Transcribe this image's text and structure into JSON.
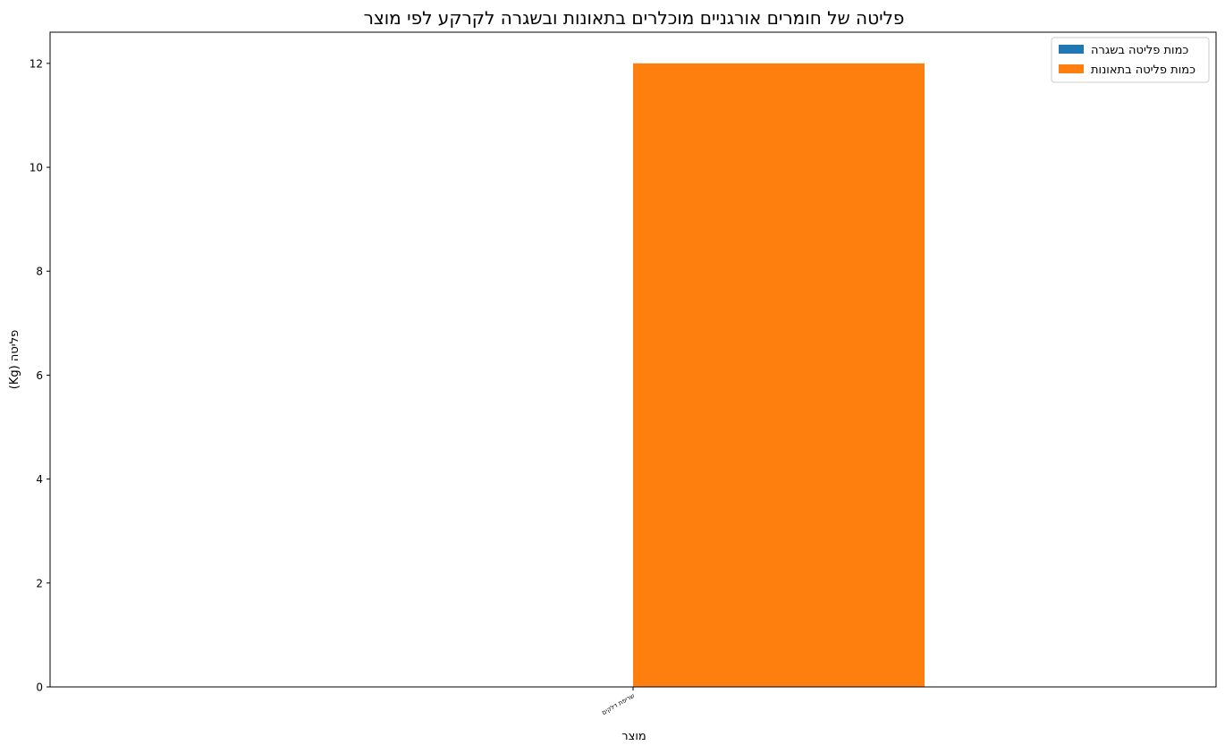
{
  "chart_data": {
    "type": "bar",
    "title": "פליטה של חומרים אורגניים מוכלרים בתאונות ובשגרה לקרקע לפי מוצר",
    "xlabel": "מוצר",
    "ylabel": "(Kg) פליטה",
    "categories": [
      "שריפת דלקים"
    ],
    "series": [
      {
        "name": "כמות פליטה בשגרה",
        "values": [
          0
        ],
        "color": "#1f77b4"
      },
      {
        "name": "כמות פליטה בתאונות",
        "values": [
          12
        ],
        "color": "#ff7f0e"
      }
    ],
    "ylim": [
      0,
      12.6
    ],
    "yticks": [
      0,
      2,
      4,
      6,
      8,
      10,
      12
    ],
    "legend_position": "top-right",
    "grid": false
  }
}
